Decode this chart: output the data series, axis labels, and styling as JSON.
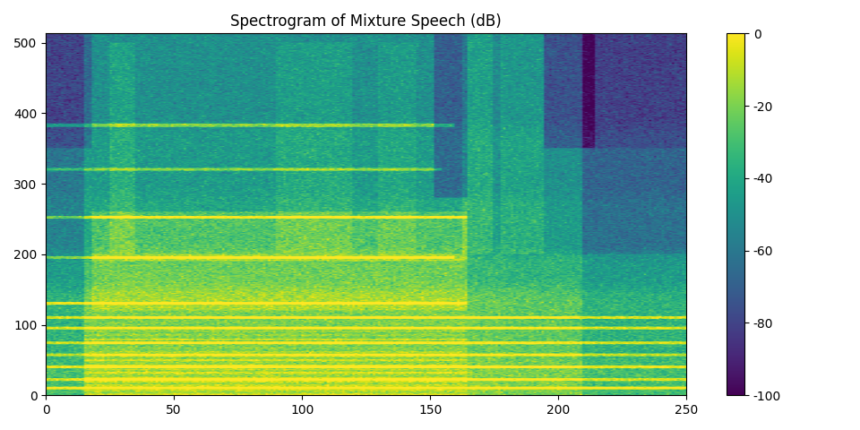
{
  "title": "Spectrogram of Mixture Speech (dB)",
  "xlim": [
    0,
    250
  ],
  "ylim": [
    0,
    513
  ],
  "colormap": "viridis",
  "vmin": -100,
  "vmax": 0,
  "n_freq_bins": 513,
  "n_time_frames": 251,
  "seed": 42,
  "figsize": [
    9.6,
    4.8
  ],
  "dpi": 100,
  "colorbar_ticks": [
    0,
    -20,
    -40,
    -60,
    -80,
    -100
  ]
}
